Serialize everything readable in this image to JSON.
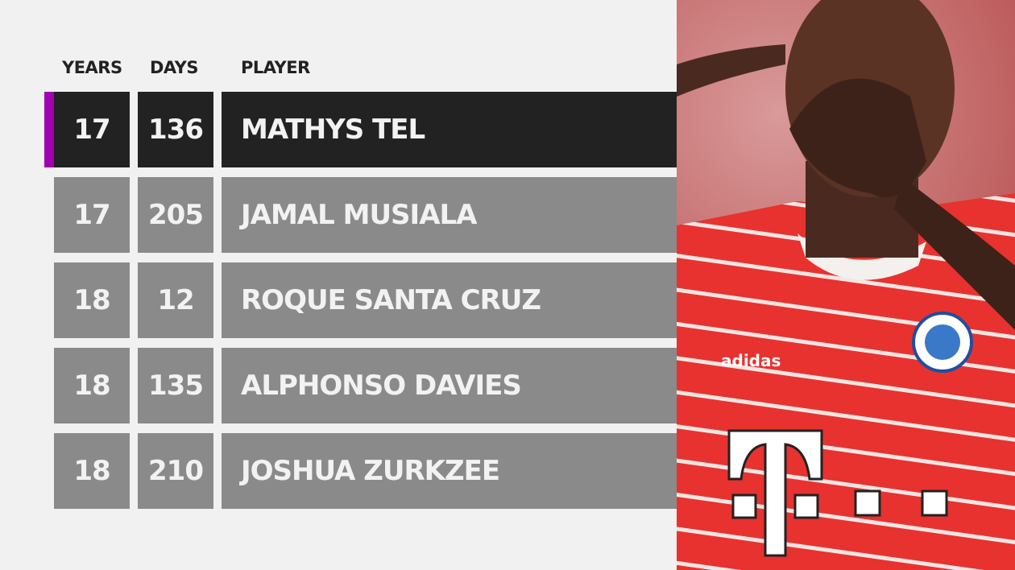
{
  "headers": {
    "years": "YEARS",
    "days": "DAYS",
    "player": "PLAYER"
  },
  "accent_color": "#a100b0",
  "rows": [
    {
      "years": "17",
      "days": "136",
      "player": "MATHYS TEL",
      "highlighted": true
    },
    {
      "years": "17",
      "days": "205",
      "player": "JAMAL MUSIALA",
      "highlighted": false
    },
    {
      "years": "18",
      "days": "12",
      "player": "ROQUE SANTA CRUZ",
      "highlighted": false
    },
    {
      "years": "18",
      "days": "135",
      "player": "ALPHONSO DAVIES",
      "highlighted": false
    },
    {
      "years": "18",
      "days": "210",
      "player": "JOSHUA ZURKZEE",
      "highlighted": false
    }
  ],
  "photo": {
    "description_icon": "player-celebration-photo",
    "shirt_text": "adidas",
    "crest": "FC BAYERN MÜNCHEN"
  }
}
